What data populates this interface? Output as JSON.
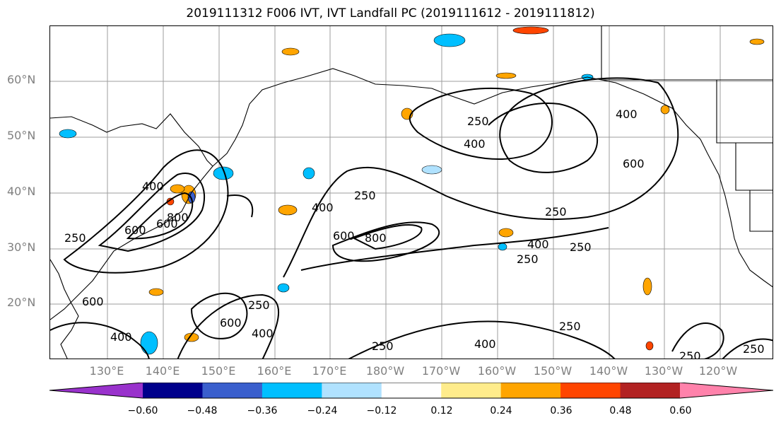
{
  "title": "2019111312 F006 IVT, IVT Landfall PC (2019111612 - 2019111812)",
  "lat_labels": [
    "60°N",
    "50°N",
    "40°N",
    "30°N",
    "20°N"
  ],
  "lon_labels": [
    "130°E",
    "140°E",
    "150°E",
    "160°E",
    "170°E",
    "180°W",
    "170°W",
    "160°W",
    "150°W",
    "140°W",
    "130°W",
    "120°W"
  ],
  "contour_labels": [
    "250",
    "400",
    "600",
    "800",
    "250",
    "400",
    "600",
    "800",
    "250",
    "400",
    "250",
    "400",
    "600",
    "250",
    "400",
    "600",
    "250",
    "400",
    "250",
    "400",
    "250",
    "600",
    "400",
    "600",
    "250",
    "250",
    "250"
  ],
  "colorbar": {
    "ticks": [
      "−0.60",
      "−0.48",
      "−0.36",
      "−0.24",
      "−0.12",
      "0.12",
      "0.24",
      "0.36",
      "0.48",
      "0.60"
    ],
    "colors": [
      "#9932cc",
      "#00008b",
      "#3a5fcd",
      "#00bfff",
      "#b0e2ff",
      "#ffffff",
      "#ffec8b",
      "#ffa500",
      "#ff4500",
      "#b22222",
      "#ff82ab"
    ]
  }
}
